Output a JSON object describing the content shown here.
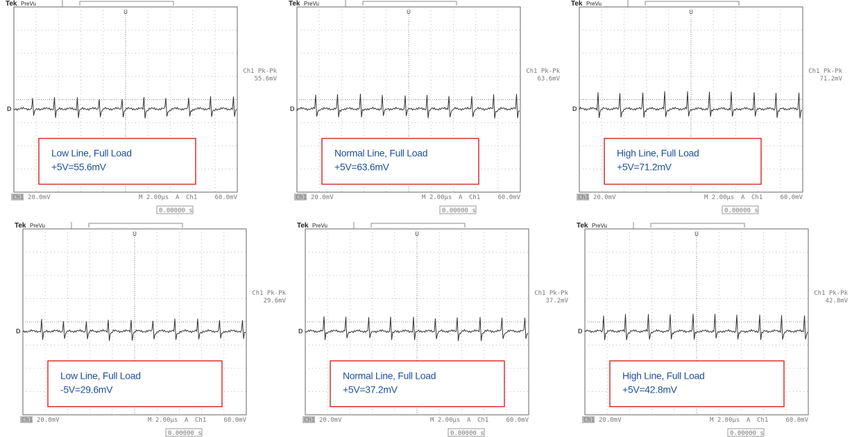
{
  "panels": [
    {
      "brand": "Tek",
      "mode": "PreVu",
      "trigger_marker": "U",
      "channel_marker": "D",
      "measurement": {
        "label": "Ch1 Pk-Pk",
        "value": "55.6mV"
      },
      "annotation": [
        "Low Line, Full Load",
        "+5V=55.6mV"
      ],
      "footer": {
        "channel": "Ch1",
        "scale": "20.0mV",
        "timebase": "M 2.00µs",
        "trigger_mode": "A",
        "trigger_channel": "Ch1",
        "trigger_level": "60.0mV",
        "position": "0.00000 s"
      }
    },
    {
      "brand": "Tek",
      "mode": "PreVu",
      "trigger_marker": "U",
      "channel_marker": "D",
      "measurement": {
        "label": "Ch1 Pk-Pk",
        "value": "63.6mV"
      },
      "annotation": [
        "Normal Line, Full Load",
        "+5V=63.6mV"
      ],
      "footer": {
        "channel": "Ch1",
        "scale": "20.0mV",
        "timebase": "M 2.00µs",
        "trigger_mode": "A",
        "trigger_channel": "Ch1",
        "trigger_level": "60.0mV",
        "position": "0.00000 s"
      }
    },
    {
      "brand": "Tek",
      "mode": "PreVu",
      "trigger_marker": "U",
      "channel_marker": "D",
      "measurement": {
        "label": "Ch1 Pk-Pk",
        "value": "71.2mV"
      },
      "annotation": [
        "High Line, Full Load",
        "+5V=71.2mV"
      ],
      "footer": {
        "channel": "Ch1",
        "scale": "20.0mV",
        "timebase": "M 2.00µs",
        "trigger_mode": "A",
        "trigger_channel": "Ch1",
        "trigger_level": "60.0mV",
        "position": "0.00000 s"
      }
    },
    {
      "brand": "Tek",
      "mode": "PreVu",
      "trigger_marker": "U",
      "channel_marker": "D",
      "measurement": {
        "label": "Ch1 Pk-Pk",
        "value": "29.6mV"
      },
      "annotation": [
        "Low Line, Full Load",
        "-5V=29.6mV"
      ],
      "footer": {
        "channel": "Ch1",
        "scale": "20.0mV",
        "timebase": "M 2.00µs",
        "trigger_mode": "A",
        "trigger_channel": "Ch1",
        "trigger_level": "60.0mV",
        "position": "0.00000 s"
      }
    },
    {
      "brand": "Tek",
      "mode": "PreVu",
      "trigger_marker": "U",
      "channel_marker": "D",
      "measurement": {
        "label": "Ch1 Pk-Pk",
        "value": "37.2mV"
      },
      "annotation": [
        "Normal Line, Full Load",
        "+5V=37.2mV"
      ],
      "footer": {
        "channel": "Ch1",
        "scale": "20.0mV",
        "timebase": "M 2.00µs",
        "trigger_mode": "A",
        "trigger_channel": "Ch1",
        "trigger_level": "60.0mV",
        "position": "0.00000 s"
      }
    },
    {
      "brand": "Tek",
      "mode": "PreVu",
      "trigger_marker": "U",
      "channel_marker": "D",
      "measurement": {
        "label": "Ch1 Pk-Pk",
        "value": "42.8mV"
      },
      "annotation": [
        "High Line, Full Load",
        "+5V=42.8mV"
      ],
      "footer": {
        "channel": "Ch1",
        "scale": "20.0mV",
        "timebase": "M 2.00µs",
        "trigger_mode": "A",
        "trigger_channel": "Ch1",
        "trigger_level": "60.0mV",
        "position": "0.00000 s"
      }
    }
  ]
}
